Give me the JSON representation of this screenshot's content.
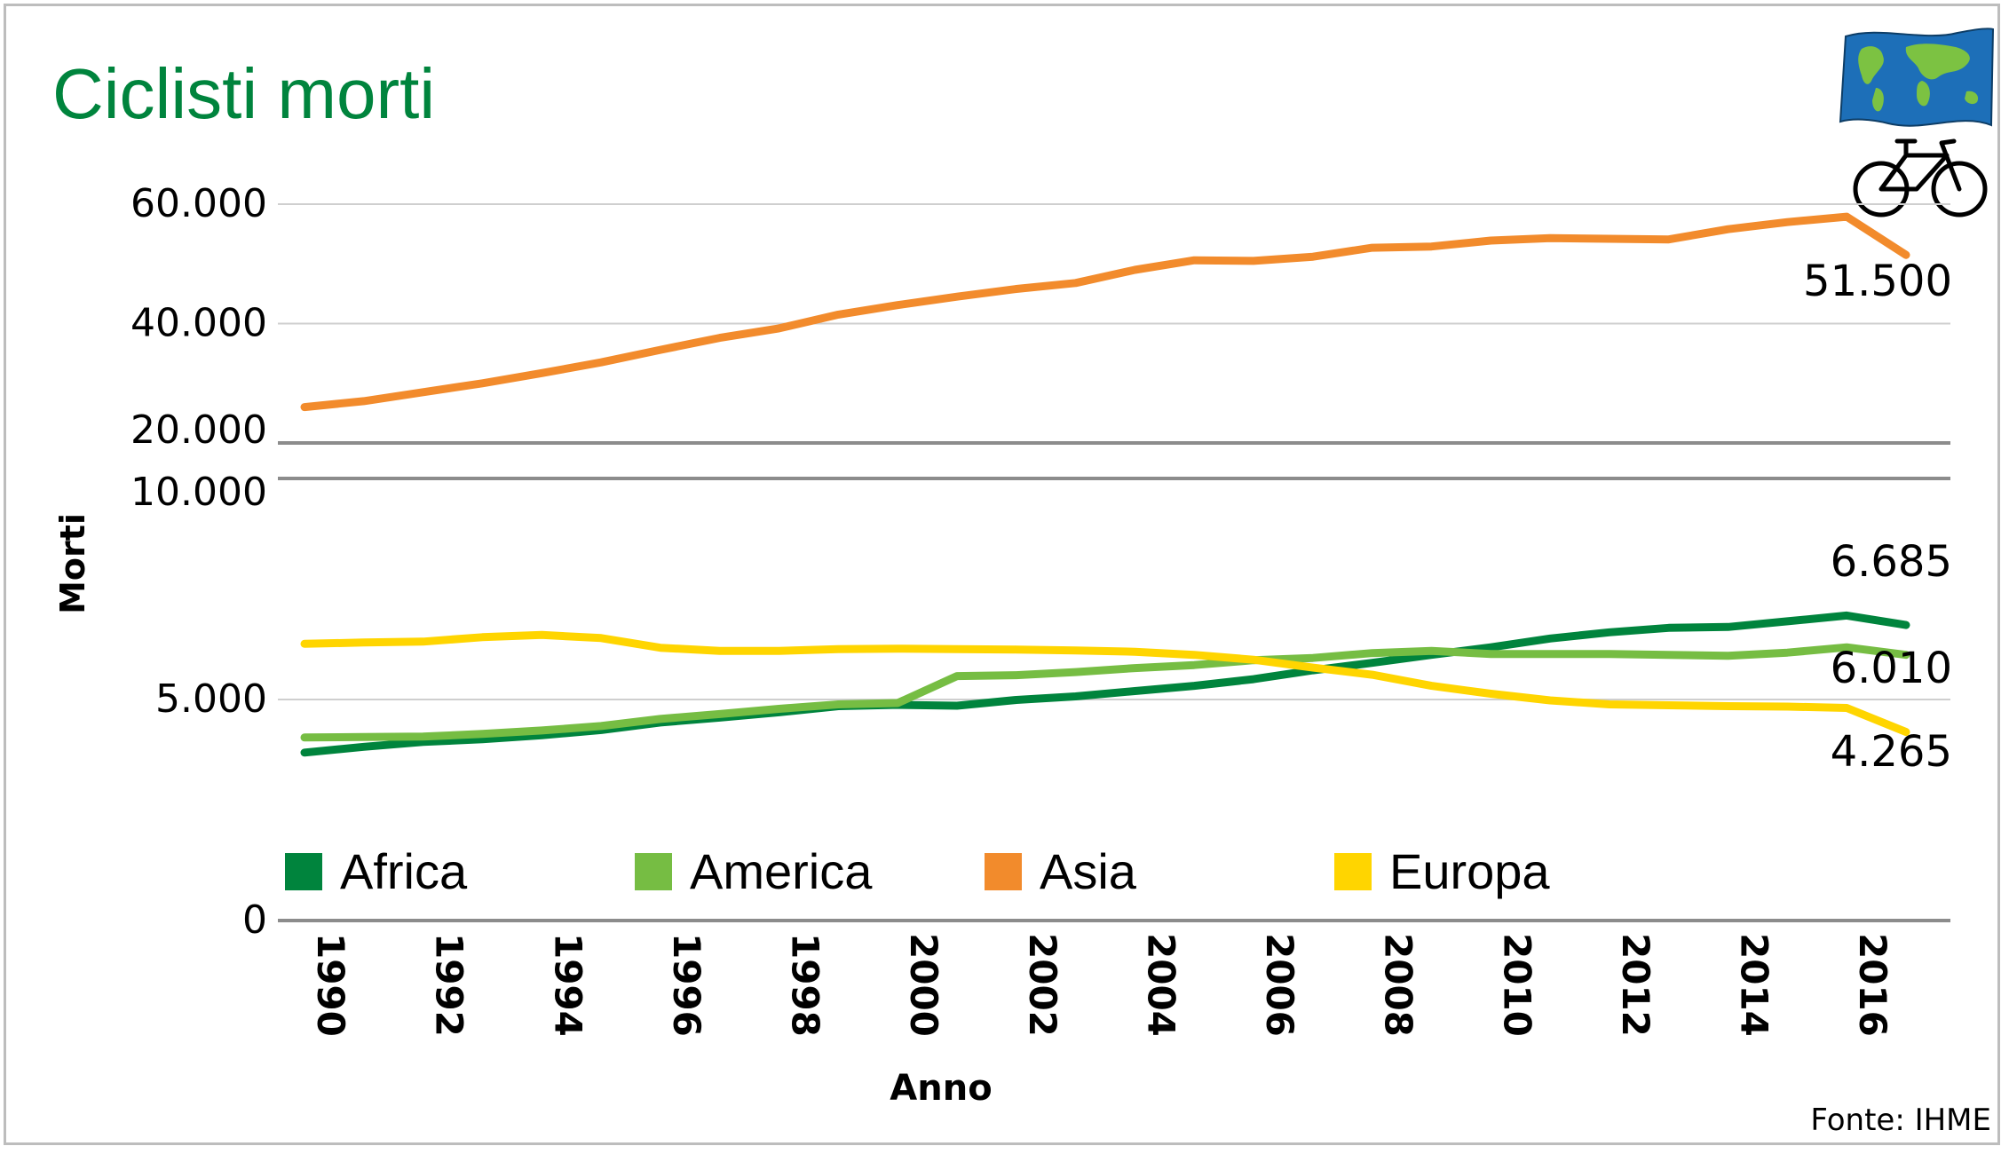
{
  "chart_data": {
    "type": "line",
    "title": "Ciclisti morti",
    "xlabel": "Anno",
    "ylabel": "Morti",
    "source": "Fonte: IHME",
    "x": [
      1990,
      1991,
      1992,
      1993,
      1994,
      1995,
      1996,
      1997,
      1998,
      1999,
      2000,
      2001,
      2002,
      2003,
      2004,
      2005,
      2006,
      2007,
      2008,
      2009,
      2010,
      2011,
      2012,
      2013,
      2014,
      2015,
      2016,
      2017
    ],
    "x_ticks": [
      "1990",
      "1992",
      "1994",
      "1996",
      "1998",
      "2000",
      "2002",
      "2004",
      "2006",
      "2008",
      "2010",
      "2012",
      "2014",
      "2016"
    ],
    "y_ticks": [
      "0",
      "5.000",
      "10.000",
      "20.000",
      "40.000",
      "60.000"
    ],
    "axis_note": "broken y-axis: lower panel 0–10.000, upper panel 20.000–60.000",
    "lower_range": [
      0,
      10000
    ],
    "upper_range": [
      20000,
      60000
    ],
    "series": [
      {
        "name": "Africa",
        "color": "#00843d",
        "values": [
          3800,
          3930,
          4040,
          4100,
          4190,
          4310,
          4480,
          4590,
          4710,
          4850,
          4880,
          4860,
          4990,
          5070,
          5190,
          5310,
          5460,
          5660,
          5830,
          6010,
          6180,
          6380,
          6520,
          6620,
          6640,
          6770,
          6900,
          6685
        ]
      },
      {
        "name": "America",
        "color": "#76bd43",
        "values": [
          4140,
          4150,
          4160,
          4220,
          4300,
          4400,
          4560,
          4670,
          4790,
          4890,
          4920,
          5530,
          5550,
          5620,
          5710,
          5780,
          5890,
          5940,
          6050,
          6100,
          6030,
          6030,
          6030,
          6010,
          5990,
          6060,
          6180,
          6010
        ]
      },
      {
        "name": "Asia",
        "color": "#f28b2c",
        "values": [
          26000,
          27000,
          28500,
          30000,
          31700,
          33500,
          35600,
          37600,
          39200,
          41500,
          43100,
          44500,
          45800,
          46800,
          49000,
          50600,
          50500,
          51200,
          52700,
          52900,
          53900,
          54300,
          54200,
          54100,
          55800,
          57000,
          57900,
          51500
        ]
      },
      {
        "name": "Europa",
        "color": "#ffd500",
        "values": [
          6260,
          6290,
          6310,
          6410,
          6460,
          6390,
          6170,
          6100,
          6100,
          6140,
          6150,
          6140,
          6130,
          6110,
          6080,
          6010,
          5900,
          5720,
          5560,
          5310,
          5130,
          4980,
          4890,
          4870,
          4850,
          4840,
          4810,
          4265
        ]
      }
    ],
    "end_labels": [
      {
        "series": "Asia",
        "text": "51.500"
      },
      {
        "series": "Africa",
        "text": "6.685"
      },
      {
        "series": "America",
        "text": "6.010"
      },
      {
        "series": "Europa",
        "text": "4.265"
      }
    ],
    "legend_position": "bottom-left, inside plot"
  },
  "icons": {
    "flag": "world-map-flag-icon",
    "bike": "bicycle-icon"
  }
}
